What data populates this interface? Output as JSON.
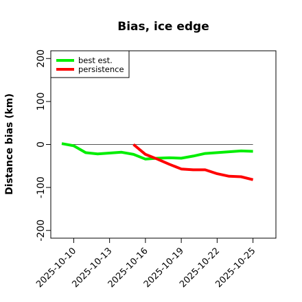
{
  "chart_data": {
    "type": "line",
    "title": "Bias, ice edge",
    "xlabel": "",
    "ylabel": "Distance bias (km)",
    "x_ticks": [
      "2025-10-10",
      "2025-10-13",
      "2025-10-16",
      "2025-10-19",
      "2025-10-22",
      "2025-10-25"
    ],
    "xlim": [
      "2025-10-09",
      "2025-10-26"
    ],
    "y_ticks": [
      -200,
      -100,
      0,
      100,
      200
    ],
    "ylim": [
      -218,
      218
    ],
    "reference_line": 0,
    "grid": false,
    "legend": "top-left",
    "series": [
      {
        "name": "best est.",
        "color": "#00ee00",
        "points": [
          [
            "2025-10-09",
            2
          ],
          [
            "2025-10-10",
            -3
          ],
          [
            "2025-10-11",
            -19
          ],
          [
            "2025-10-12",
            -22
          ],
          [
            "2025-10-13",
            -20
          ],
          [
            "2025-10-14",
            -18
          ],
          [
            "2025-10-15",
            -23
          ],
          [
            "2025-10-16",
            -34
          ],
          [
            "2025-10-17",
            -32
          ],
          [
            "2025-10-18",
            -31
          ],
          [
            "2025-10-19",
            -32
          ],
          [
            "2025-10-20",
            -27
          ],
          [
            "2025-10-21",
            -21
          ],
          [
            "2025-10-22",
            -19
          ],
          [
            "2025-10-23",
            -17
          ],
          [
            "2025-10-24",
            -15
          ],
          [
            "2025-10-25",
            -16
          ]
        ]
      },
      {
        "name": "persistence",
        "color": "#ff0000",
        "points": [
          [
            "2025-10-15",
            0
          ],
          [
            "2025-10-16",
            -23
          ],
          [
            "2025-10-17",
            -34
          ],
          [
            "2025-10-18",
            -46
          ],
          [
            "2025-10-19",
            -57
          ],
          [
            "2025-10-20",
            -59
          ],
          [
            "2025-10-21",
            -59
          ],
          [
            "2025-10-22",
            -68
          ],
          [
            "2025-10-23",
            -74
          ],
          [
            "2025-10-24",
            -75
          ],
          [
            "2025-10-25",
            -82
          ]
        ]
      }
    ]
  }
}
